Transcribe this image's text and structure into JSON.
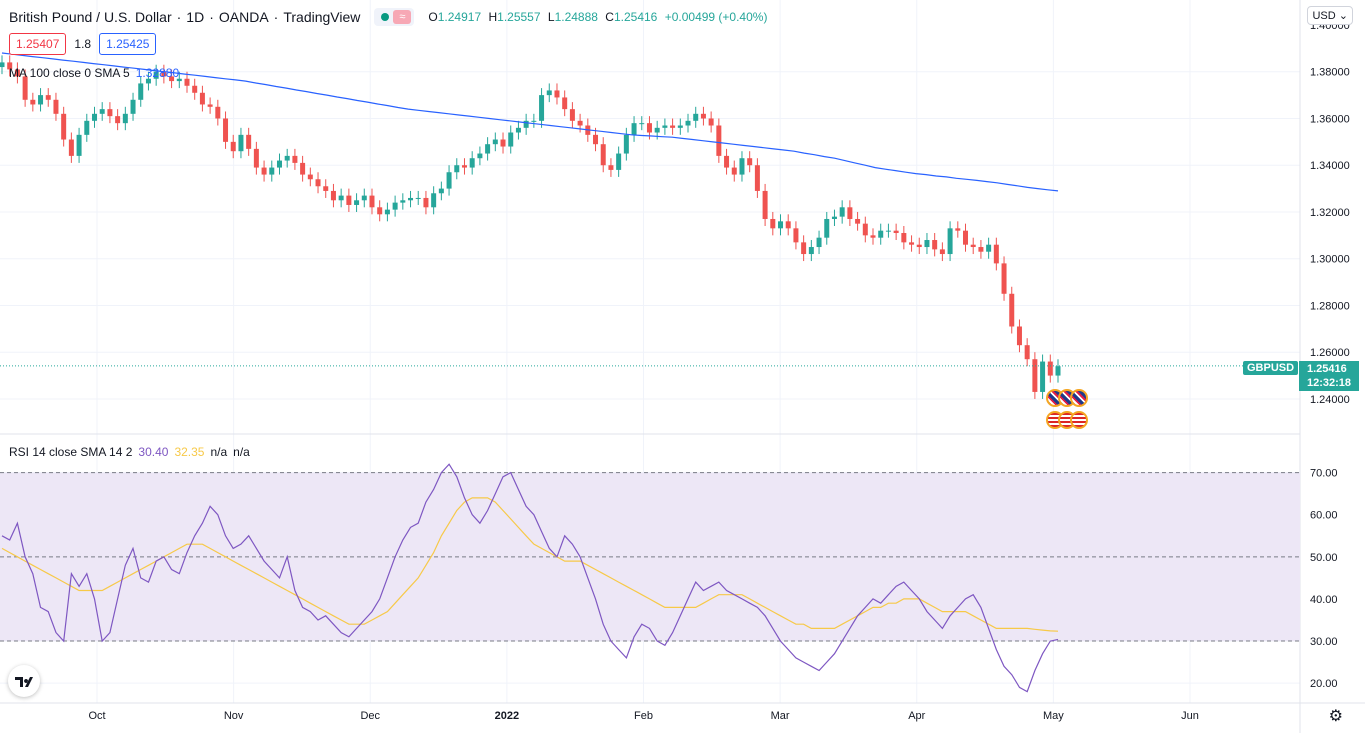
{
  "header": {
    "symbol_name": "British Pound / U.S. Dollar",
    "interval": "1D",
    "exchange": "OANDA",
    "platform": "TradingView",
    "sep": "·",
    "open_label": "O",
    "open": "1.24917",
    "high_label": "H",
    "high": "1.25557",
    "low_label": "L",
    "low": "1.24888",
    "close_label": "C",
    "close": "1.25416",
    "change": "+0.00499 (+0.40%)"
  },
  "trade": {
    "sell": "1.25407",
    "spread": "1.8",
    "buy": "1.25425"
  },
  "ma_legend": {
    "label": "MA 100 close 0 SMA 5",
    "value": "1.32880"
  },
  "rsi_legend": {
    "label": "RSI 14 close SMA 14 2",
    "rsi": "30.40",
    "sma": "32.35",
    "na1": "n/a",
    "na2": "n/a"
  },
  "currency": "USD",
  "price_tag": {
    "symbol": "GBPUSD",
    "price": "1.25416",
    "countdown": "12:32:18"
  },
  "colors": {
    "up": "#26a69a",
    "down": "#ef5350",
    "ma": "#2962ff",
    "rsi": "#7e57c2",
    "rsi_sma": "#f7c948",
    "band": "#ede7f6"
  },
  "chart_data": [
    {
      "type": "candlestick",
      "y_axis_ticks": [
        "1.38000",
        "1.36000",
        "1.34000",
        "1.32000",
        "1.30000",
        "1.28000",
        "1.26000",
        "1.24000"
      ],
      "y_axis_top_partial": "1.40000",
      "x_axis_ticks": [
        "Oct",
        "Nov",
        "Dec",
        "2022",
        "Feb",
        "Mar",
        "Apr",
        "May",
        "Jun"
      ],
      "ylim": [
        1.225,
        1.4
      ],
      "close_series": [
        1.384,
        1.381,
        1.378,
        1.368,
        1.366,
        1.37,
        1.368,
        1.362,
        1.351,
        1.344,
        1.353,
        1.359,
        1.362,
        1.364,
        1.361,
        1.358,
        1.362,
        1.368,
        1.375,
        1.377,
        1.38,
        1.378,
        1.376,
        1.377,
        1.374,
        1.371,
        1.366,
        1.365,
        1.36,
        1.35,
        1.346,
        1.353,
        1.347,
        1.339,
        1.336,
        1.339,
        1.342,
        1.344,
        1.341,
        1.336,
        1.334,
        1.331,
        1.329,
        1.325,
        1.327,
        1.323,
        1.325,
        1.327,
        1.322,
        1.319,
        1.321,
        1.324,
        1.325,
        1.326,
        1.326,
        1.322,
        1.328,
        1.33,
        1.337,
        1.34,
        1.339,
        1.343,
        1.345,
        1.349,
        1.351,
        1.348,
        1.354,
        1.356,
        1.359,
        1.359,
        1.37,
        1.372,
        1.369,
        1.364,
        1.359,
        1.357,
        1.353,
        1.349,
        1.34,
        1.338,
        1.345,
        1.353,
        1.358,
        1.358,
        1.354,
        1.356,
        1.357,
        1.356,
        1.357,
        1.359,
        1.362,
        1.36,
        1.357,
        1.344,
        1.339,
        1.336,
        1.343,
        1.34,
        1.329,
        1.317,
        1.313,
        1.316,
        1.313,
        1.307,
        1.302,
        1.305,
        1.309,
        1.317,
        1.318,
        1.322,
        1.317,
        1.315,
        1.31,
        1.309,
        1.312,
        1.312,
        1.311,
        1.307,
        1.306,
        1.305,
        1.308,
        1.304,
        1.302,
        1.313,
        1.312,
        1.306,
        1.305,
        1.303,
        1.306,
        1.298,
        1.285,
        1.271,
        1.263,
        1.257,
        1.243,
        1.256,
        1.25,
        1.254
      ],
      "ma100_series": [
        1.388,
        1.3875,
        1.387,
        1.3865,
        1.386,
        1.3855,
        1.385,
        1.3845,
        1.384,
        1.3835,
        1.383,
        1.3825,
        1.382,
        1.3815,
        1.381,
        1.3805,
        1.38,
        1.3795,
        1.379,
        1.3785,
        1.378,
        1.3775,
        1.377,
        1.3765,
        1.376,
        1.3752,
        1.3745,
        1.3737,
        1.373,
        1.3722,
        1.3715,
        1.3707,
        1.37,
        1.3692,
        1.3685,
        1.3677,
        1.367,
        1.3662,
        1.3655,
        1.3647,
        1.364,
        1.3635,
        1.363,
        1.3625,
        1.362,
        1.3615,
        1.361,
        1.3605,
        1.36,
        1.3595,
        1.359,
        1.3585,
        1.358,
        1.3575,
        1.357,
        1.3565,
        1.356,
        1.3555,
        1.355,
        1.3545,
        1.354,
        1.3535,
        1.353,
        1.3527,
        1.3525,
        1.3522,
        1.352,
        1.3515,
        1.351,
        1.3505,
        1.35,
        1.3495,
        1.349,
        1.3485,
        1.348,
        1.3475,
        1.347,
        1.3465,
        1.346,
        1.3452,
        1.3445,
        1.3437,
        1.343,
        1.342,
        1.341,
        1.34,
        1.339,
        1.3383,
        1.3377,
        1.337,
        1.3364,
        1.336,
        1.3354,
        1.335,
        1.3344,
        1.334,
        1.3335,
        1.333,
        1.3325,
        1.3318,
        1.3312,
        1.3305,
        1.33,
        1.3295,
        1.329
      ],
      "latest_price": 1.25416
    },
    {
      "type": "line",
      "name": "RSI",
      "y_axis_ticks": [
        "70.00",
        "60.00",
        "50.00",
        "40.00",
        "30.00",
        "20.00"
      ],
      "ylim": [
        16,
        73
      ],
      "bands": [
        30,
        50,
        70
      ],
      "rsi_series": [
        55,
        54,
        58,
        50,
        46,
        38,
        37,
        32,
        30,
        46,
        43,
        46,
        40,
        30,
        32,
        40,
        48,
        52,
        45,
        44,
        49,
        50,
        47,
        46,
        51,
        55,
        58,
        62,
        60,
        55,
        52,
        53,
        55,
        52,
        49,
        47,
        45,
        50,
        42,
        38,
        37,
        35,
        36,
        34,
        32,
        31,
        33,
        35,
        37,
        40,
        45,
        50,
        54,
        57,
        58,
        63,
        66,
        70,
        72,
        69,
        64,
        60,
        58,
        61,
        65,
        69,
        70,
        66,
        62,
        60,
        56,
        52,
        50,
        55,
        53,
        50,
        45,
        40,
        34,
        30,
        28,
        26,
        31,
        34,
        33,
        30,
        29,
        32,
        36,
        40,
        44,
        42,
        43,
        44,
        42,
        41,
        40,
        39,
        38,
        36,
        33,
        30,
        28,
        26,
        25,
        24,
        23,
        25,
        27,
        30,
        33,
        36,
        38,
        40,
        39,
        41,
        43,
        44,
        42,
        40,
        37,
        35,
        33,
        36,
        38,
        40,
        41,
        38,
        33,
        28,
        24,
        22,
        19,
        18,
        23,
        27,
        30,
        30.4
      ],
      "rsi_sma_series": [
        52,
        51,
        50,
        49,
        48,
        47,
        46,
        45,
        44,
        43,
        42,
        42,
        42,
        42,
        43,
        44,
        45,
        46,
        47,
        48,
        49,
        50,
        51,
        52,
        53,
        53,
        53,
        52,
        51,
        50,
        49,
        48,
        47,
        46,
        45,
        44,
        43,
        42,
        41,
        40,
        39,
        38,
        37,
        36,
        35,
        34,
        34,
        34,
        35,
        36,
        37,
        39,
        41,
        43,
        45,
        48,
        51,
        55,
        58,
        61,
        63,
        64,
        64,
        64,
        63,
        61,
        59,
        57,
        55,
        53,
        52,
        51,
        50,
        49,
        49,
        49,
        48,
        47,
        46,
        45,
        44,
        43,
        42,
        41,
        40,
        39,
        38,
        38,
        38,
        38,
        38,
        39,
        40,
        41,
        41,
        41,
        41,
        40,
        39,
        38,
        37,
        36,
        35,
        34,
        34,
        33,
        33,
        33,
        33,
        34,
        35,
        36,
        37,
        38,
        38,
        39,
        39,
        40,
        40,
        40,
        39,
        38,
        37,
        37,
        37,
        37,
        36,
        35,
        34,
        33,
        33,
        33,
        33,
        33,
        32.8,
        32.6,
        32.4,
        32.35
      ]
    }
  ]
}
